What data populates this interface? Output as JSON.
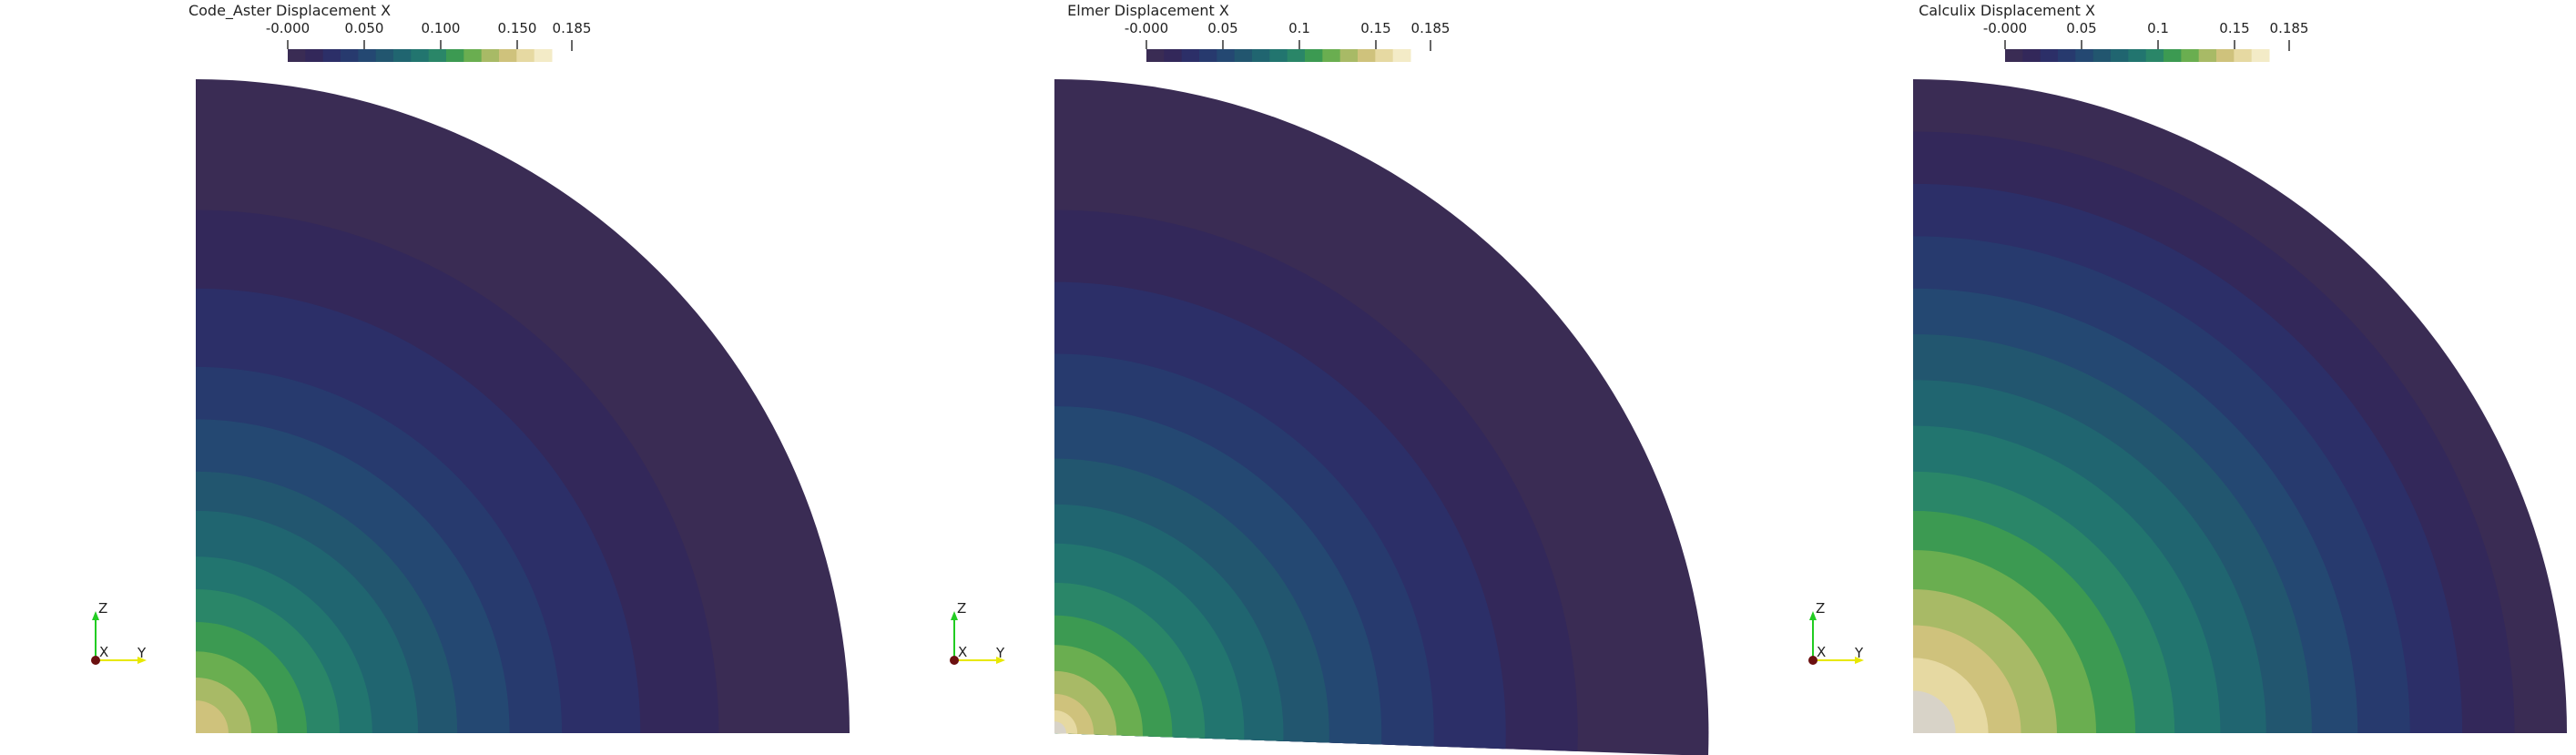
{
  "views": [
    {
      "title": "Code_Aster Displacement X",
      "ticks": [
        "-0.000",
        "0.050",
        "0.100",
        "0.150",
        "0.185"
      ],
      "variant": "code_aster",
      "axes": {
        "z": "Z",
        "x": "X",
        "y": "Y"
      }
    },
    {
      "title": "Elmer Displacement X",
      "ticks": [
        "-0.000",
        "0.05",
        "0.1",
        "0.15",
        "0.185"
      ],
      "variant": "elmer",
      "axes": {
        "z": "Z",
        "x": "X",
        "y": "Y"
      }
    },
    {
      "title": "Calculix Displacement X",
      "ticks": [
        "-0.000",
        "0.05",
        "0.1",
        "0.15",
        "0.185"
      ],
      "variant": "calculix",
      "axes": {
        "z": "Z",
        "x": "X",
        "y": "Y"
      }
    }
  ],
  "palette": [
    "#3a2c54",
    "#33285a",
    "#2c2f68",
    "#273a6e",
    "#244872",
    "#22566f",
    "#206570",
    "#22756f",
    "#2a8668",
    "#3c9a52",
    "#6aae50",
    "#a8ba66",
    "#cfc27c",
    "#e6d9a2",
    "#f3ebc7",
    "#d8d3c8"
  ]
}
